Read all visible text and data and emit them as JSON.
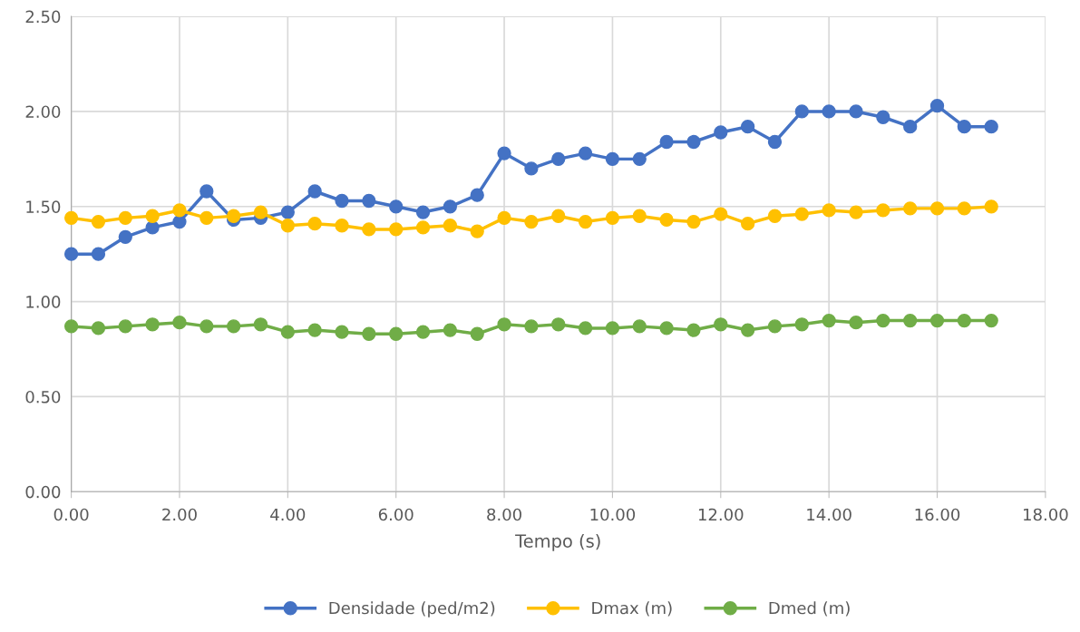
{
  "chart_data": {
    "type": "line",
    "xlabel": "Tempo (s)",
    "x": [
      0,
      0.5,
      1,
      1.5,
      2,
      2.5,
      3,
      3.5,
      4,
      4.5,
      5,
      5.5,
      6,
      6.5,
      7,
      7.5,
      8,
      8.5,
      9,
      9.5,
      10,
      10.5,
      11,
      11.5,
      12,
      12.5,
      13,
      13.5,
      14,
      14.5,
      15,
      15.5,
      16,
      16.5,
      17
    ],
    "series": [
      {
        "name": "Densidade (ped/m2)",
        "color": "#4472c4",
        "values": [
          1.25,
          1.25,
          1.34,
          1.39,
          1.42,
          1.58,
          1.43,
          1.44,
          1.47,
          1.58,
          1.53,
          1.53,
          1.5,
          1.47,
          1.5,
          1.56,
          1.78,
          1.7,
          1.75,
          1.78,
          1.75,
          1.75,
          1.84,
          1.84,
          1.89,
          1.92,
          1.84,
          2.0,
          2.0,
          2.0,
          1.97,
          1.92,
          2.03,
          1.92,
          1.92
        ]
      },
      {
        "name": "Dmax (m)",
        "color": "#ffc000",
        "values": [
          1.44,
          1.42,
          1.44,
          1.45,
          1.48,
          1.44,
          1.45,
          1.47,
          1.4,
          1.41,
          1.4,
          1.38,
          1.38,
          1.39,
          1.4,
          1.37,
          1.44,
          1.42,
          1.45,
          1.42,
          1.44,
          1.45,
          1.43,
          1.42,
          1.46,
          1.41,
          1.45,
          1.46,
          1.48,
          1.47,
          1.48,
          1.49,
          1.49,
          1.49,
          1.5
        ]
      },
      {
        "name": "Dmed (m)",
        "color": "#70ad47",
        "values": [
          0.87,
          0.86,
          0.87,
          0.88,
          0.89,
          0.87,
          0.87,
          0.88,
          0.84,
          0.85,
          0.84,
          0.83,
          0.83,
          0.84,
          0.85,
          0.83,
          0.88,
          0.87,
          0.88,
          0.86,
          0.86,
          0.87,
          0.86,
          0.85,
          0.88,
          0.85,
          0.87,
          0.88,
          0.9,
          0.89,
          0.9,
          0.9,
          0.9,
          0.9,
          0.9
        ]
      }
    ],
    "xlim": [
      0,
      18
    ],
    "xticks": [
      {
        "value": 0,
        "label": "0.00"
      },
      {
        "value": 2,
        "label": "2.00"
      },
      {
        "value": 4,
        "label": "4.00"
      },
      {
        "value": 6,
        "label": "6.00"
      },
      {
        "value": 8,
        "label": "8.00"
      },
      {
        "value": 10,
        "label": "10.00"
      },
      {
        "value": 12,
        "label": "12.00"
      },
      {
        "value": 14,
        "label": "14.00"
      },
      {
        "value": 16,
        "label": "16.00"
      },
      {
        "value": 18,
        "label": "18.00"
      }
    ],
    "ylim": [
      0,
      2.5
    ],
    "yticks": [
      {
        "value": 0,
        "label": "0.00"
      },
      {
        "value": 0.5,
        "label": "0.50"
      },
      {
        "value": 1,
        "label": "1.00"
      },
      {
        "value": 1.5,
        "label": "1.50"
      },
      {
        "value": 2,
        "label": "2.00"
      },
      {
        "value": 2.5,
        "label": "2.50"
      }
    ],
    "grid": true,
    "legend": "bottom",
    "marker": "circle",
    "line_style": "solid"
  }
}
